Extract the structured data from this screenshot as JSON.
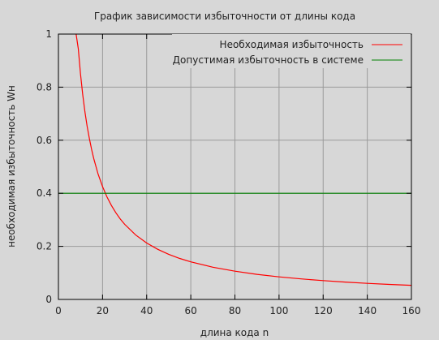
{
  "chart_data": {
    "type": "line",
    "title": "График зависимости избыточности от длины кода",
    "xlabel": "длина кода n",
    "ylabel": "необходимая избыточность Wн",
    "xlim": [
      0,
      160
    ],
    "ylim": [
      0,
      1
    ],
    "x_ticks": [
      "0",
      "20",
      "40",
      "60",
      "80",
      "100",
      "120",
      "140",
      "160"
    ],
    "y_ticks": [
      "0",
      "0.2",
      "0.4",
      "0.6",
      "0.8",
      "1"
    ],
    "grid": true,
    "legend_position": "top-right",
    "series": [
      {
        "name": "Необходимая избыточность",
        "color": "#ff0000",
        "x": [
          8,
          9,
          10,
          11,
          12,
          13,
          14,
          15,
          16,
          18,
          20,
          22,
          24,
          26,
          28,
          30,
          35,
          40,
          45,
          50,
          55,
          60,
          70,
          80,
          90,
          100,
          110,
          120,
          130,
          140,
          150,
          160
        ],
        "y": [
          1.0,
          0.9444,
          0.85,
          0.7727,
          0.7083,
          0.6538,
          0.6071,
          0.5667,
          0.5313,
          0.4722,
          0.425,
          0.3864,
          0.3542,
          0.3269,
          0.3036,
          0.2833,
          0.2429,
          0.2125,
          0.1889,
          0.17,
          0.1545,
          0.1417,
          0.1214,
          0.1063,
          0.0944,
          0.085,
          0.0773,
          0.0708,
          0.0654,
          0.0607,
          0.0567,
          0.0531
        ]
      },
      {
        "name": "Допустимая избыточность в системе",
        "color": "#008000",
        "x": [
          0,
          160
        ],
        "y": [
          0.4,
          0.4
        ]
      }
    ]
  }
}
